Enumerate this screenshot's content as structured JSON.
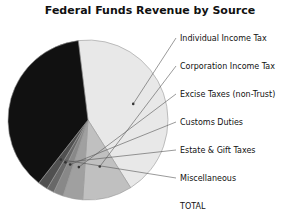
{
  "chart_data": {
    "type": "pie",
    "title": "Federal Funds Revenue by Source",
    "categories": [
      "Individual Income Tax",
      "Corporation Income Tax",
      "Excise Taxes (non-Trust)",
      "Customs Duties",
      "Estate & Gift Taxes",
      "Miscellaneous",
      "TOTAL"
    ],
    "values": [
      43,
      10,
      4,
      2,
      1.5,
      2,
      37.5
    ],
    "colors": [
      "#e8e8e8",
      "#c0c0c0",
      "#a0a0a0",
      "#888888",
      "#686868",
      "#505050",
      "#111111"
    ],
    "legend": "right"
  }
}
